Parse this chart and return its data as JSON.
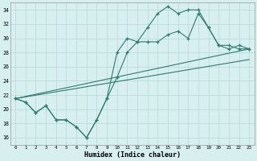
{
  "background_color": "#d7efef",
  "grid_color": "#b8d8d8",
  "line_color": "#2e7b70",
  "xlabel": "Humidex (Indice chaleur)",
  "xlim": [
    -0.5,
    23.5
  ],
  "ylim": [
    15.0,
    35.0
  ],
  "yticks": [
    16,
    18,
    20,
    22,
    24,
    26,
    28,
    30,
    32,
    34
  ],
  "xticks": [
    0,
    1,
    2,
    3,
    4,
    5,
    6,
    7,
    8,
    9,
    10,
    11,
    12,
    13,
    14,
    15,
    16,
    17,
    18,
    19,
    20,
    21,
    22,
    23
  ],
  "line1_x": [
    0,
    1,
    2,
    3,
    4,
    5,
    6,
    7,
    8,
    9,
    10,
    11,
    12,
    13,
    14,
    15,
    16,
    17,
    18,
    19,
    20,
    21,
    22,
    23
  ],
  "line1_y": [
    21.5,
    21.0,
    19.5,
    20.5,
    18.5,
    18.5,
    17.5,
    16.0,
    18.5,
    21.5,
    28.0,
    30.0,
    29.5,
    31.5,
    33.5,
    34.5,
    33.5,
    34.0,
    34.0,
    31.5,
    29.0,
    29.0,
    28.5,
    28.5
  ],
  "line2_x": [
    0,
    1,
    2,
    3,
    4,
    5,
    6,
    7,
    8,
    9,
    10,
    11,
    12,
    13,
    14,
    15,
    16,
    17,
    18,
    19,
    20,
    21,
    22,
    23
  ],
  "line2_y": [
    21.5,
    21.0,
    19.5,
    20.5,
    18.5,
    18.5,
    17.5,
    16.0,
    18.5,
    21.5,
    24.5,
    28.0,
    29.5,
    29.5,
    29.5,
    30.5,
    31.0,
    30.0,
    33.5,
    31.5,
    29.0,
    28.5,
    29.0,
    28.5
  ],
  "line3_x": [
    0,
    23
  ],
  "line3_y": [
    21.5,
    28.5
  ],
  "line4_x": [
    0,
    23
  ],
  "line4_y": [
    21.5,
    27.0
  ]
}
